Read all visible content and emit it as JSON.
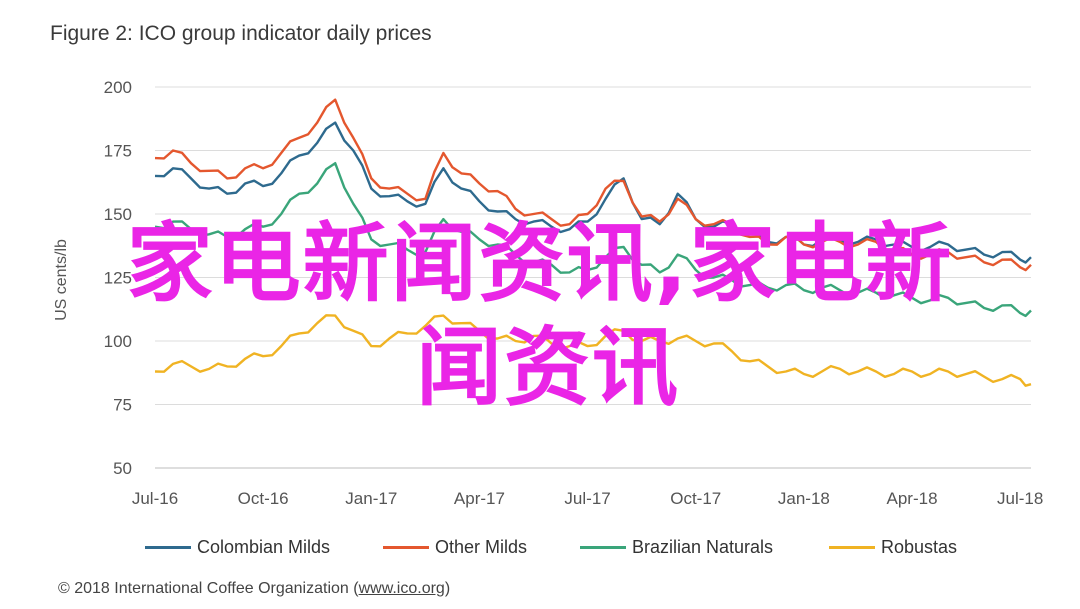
{
  "title": "Figure 2: ICO group indicator daily prices",
  "credit_prefix": "© 2018 International Coffee Organization (",
  "credit_link": "www.ico.org",
  "credit_suffix": ")",
  "overlay": {
    "line1": "家电新闻资讯,家电新",
    "line2": "闻资讯"
  },
  "chart_data": {
    "type": "line",
    "title": "Figure 2: ICO group indicator daily prices",
    "ylabel": "US cents/lb",
    "ylim": [
      50,
      200
    ],
    "yticks": [
      50,
      75,
      100,
      125,
      150,
      175,
      200
    ],
    "x_tick_labels": [
      "Jul-16",
      "Oct-16",
      "Jan-17",
      "Apr-17",
      "Jul-17",
      "Oct-17",
      "Jan-18",
      "Apr-18",
      "Jul-18"
    ],
    "x_tick_pos": [
      0,
      3,
      6,
      9,
      12,
      15,
      18,
      21,
      24
    ],
    "xlim": [
      0,
      24.3
    ],
    "grid": "horizontal",
    "legend_position": "bottom",
    "series": [
      {
        "name": "Colombian Milds",
        "color": "#2e6a8e",
        "x": [
          0,
          0.5,
          1,
          1.5,
          2,
          2.5,
          3,
          3.5,
          4,
          4.5,
          5,
          5.5,
          6,
          6.5,
          7,
          7.5,
          8,
          8.5,
          9,
          9.5,
          10,
          10.5,
          11,
          11.5,
          12,
          12.5,
          13,
          13.5,
          14,
          14.5,
          15,
          15.5,
          16,
          16.5,
          17,
          17.5,
          18,
          18.5,
          19,
          19.5,
          20,
          20.5,
          21,
          21.5,
          22,
          22.5,
          23,
          23.5,
          24,
          24.3
        ],
        "y": [
          165,
          168,
          164,
          160,
          158,
          162,
          161,
          166,
          173,
          178,
          186,
          175,
          160,
          157,
          155,
          154,
          168,
          160,
          155,
          151,
          148,
          147,
          145,
          144,
          147,
          156,
          164,
          148,
          146,
          158,
          148,
          145,
          146,
          142,
          139,
          141,
          138,
          140,
          140,
          139,
          140,
          138,
          137,
          137,
          138,
          136,
          134,
          135,
          132,
          133
        ]
      },
      {
        "name": "Other Milds",
        "color": "#e4572e",
        "x": [
          0,
          0.5,
          1,
          1.5,
          2,
          2.5,
          3,
          3.5,
          4,
          4.5,
          5,
          5.5,
          6,
          6.5,
          7,
          7.5,
          8,
          8.5,
          9,
          9.5,
          10,
          10.5,
          11,
          11.5,
          12,
          12.5,
          13,
          13.5,
          14,
          14.5,
          15,
          15.5,
          16,
          16.5,
          17,
          17.5,
          18,
          18.5,
          19,
          19.5,
          20,
          20.5,
          21,
          21.5,
          22,
          22.5,
          23,
          23.5,
          24,
          24.3
        ],
        "y": [
          172,
          175,
          170,
          167,
          164,
          168,
          168,
          174,
          180,
          186,
          195,
          180,
          164,
          160,
          158,
          156,
          174,
          166,
          162,
          159,
          152,
          150,
          148,
          146,
          150,
          160,
          163,
          149,
          147,
          156,
          148,
          146,
          146,
          141,
          138,
          141,
          138,
          139,
          139,
          138,
          139,
          136,
          134,
          134,
          135,
          133,
          131,
          132,
          129,
          130
        ]
      },
      {
        "name": "Brazilian Naturals",
        "color": "#3aa57a",
        "x": [
          0,
          0.5,
          1,
          1.5,
          2,
          2.5,
          3,
          3.5,
          4,
          4.5,
          5,
          5.5,
          6,
          6.5,
          7,
          7.5,
          8,
          8.5,
          9,
          9.5,
          10,
          10.5,
          11,
          11.5,
          12,
          12.5,
          13,
          13.5,
          14,
          14.5,
          15,
          15.5,
          16,
          16.5,
          17,
          17.5,
          18,
          18.5,
          19,
          19.5,
          20,
          20.5,
          21,
          21.5,
          22,
          22.5,
          23,
          23.5,
          24,
          24.3
        ],
        "y": [
          145,
          147,
          144,
          142,
          141,
          144,
          145,
          150,
          158,
          162,
          170,
          154,
          140,
          138,
          136,
          135,
          148,
          143,
          140,
          138,
          134,
          131,
          130,
          127,
          128,
          133,
          137,
          130,
          127,
          134,
          128,
          125,
          124,
          122,
          121,
          122,
          120,
          121,
          120,
          119,
          119,
          118,
          117,
          116,
          117,
          115,
          113,
          114,
          111,
          112
        ]
      },
      {
        "name": "Robustas",
        "color": "#f0b323",
        "x": [
          0,
          0.5,
          1,
          1.5,
          2,
          2.5,
          3,
          3.5,
          4,
          4.5,
          5,
          5.5,
          6,
          6.5,
          7,
          7.5,
          8,
          8.5,
          9,
          9.5,
          10,
          10.5,
          11,
          11.5,
          12,
          12.5,
          13,
          13.5,
          14,
          14.5,
          15,
          15.5,
          16,
          16.5,
          17,
          17.5,
          18,
          18.5,
          19,
          19.5,
          20,
          20.5,
          21,
          21.5,
          22,
          22.5,
          23,
          23.5,
          24,
          24.3
        ],
        "y": [
          88,
          91,
          90,
          89,
          90,
          93,
          94,
          98,
          103,
          107,
          110,
          104,
          98,
          101,
          103,
          106,
          110,
          107,
          104,
          101,
          100,
          102,
          99,
          98,
          98,
          102,
          104,
          100,
          100,
          101,
          100,
          99,
          96,
          92,
          90,
          88,
          87,
          88,
          89,
          88,
          88,
          87,
          88,
          87,
          88,
          87,
          86,
          85,
          85,
          83
        ]
      }
    ]
  }
}
